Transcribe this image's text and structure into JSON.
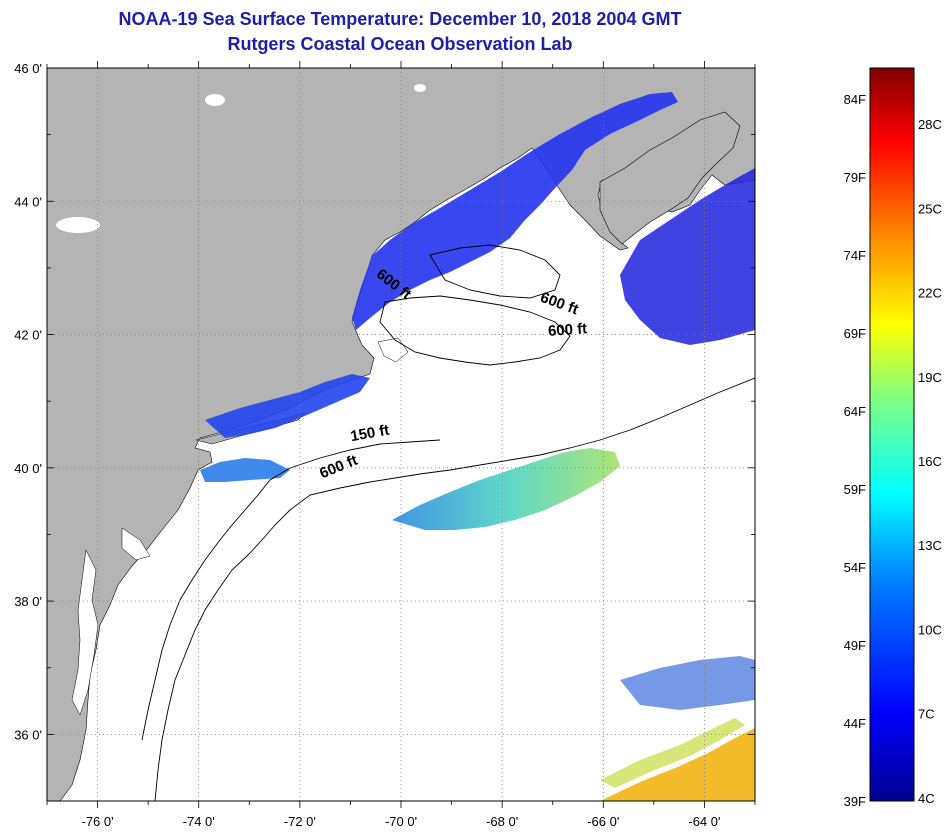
{
  "title": "NOAA-19 Sea Surface Temperature:  December 10, 2018 2004 GMT",
  "subtitle": "Rutgers Coastal Ocean Observation Lab",
  "map": {
    "lon_range": [
      -77.0,
      -63.0
    ],
    "lat_range": [
      35.0,
      46.0
    ],
    "lat_ticks": [
      "46 0'",
      "44 0'",
      "42 0'",
      "40 0'",
      "38 0'",
      "36 0'"
    ],
    "lon_ticks": [
      "-76 0'",
      "-74 0'",
      "-72 0'",
      "-70 0'",
      "-68 0'",
      "-66 0'",
      "-64 0'"
    ],
    "contour_labels": [
      {
        "text": "600 ft",
        "lon": -70.2,
        "lat": 42.7
      },
      {
        "text": "600 ft",
        "lon": -66.9,
        "lat": 42.4
      },
      {
        "text": "600 ft",
        "lon": -66.7,
        "lat": 42.0
      },
      {
        "text": "150 ft",
        "lon": -70.6,
        "lat": 40.45
      },
      {
        "text": "600 ft",
        "lon": -71.2,
        "lat": 39.95
      }
    ],
    "colors": {
      "land": "#b4b4b4",
      "water": "#ffffff",
      "grid": "#808080"
    }
  },
  "colorbar": {
    "fahrenheit_labels": [
      "84F",
      "79F",
      "74F",
      "69F",
      "64F",
      "59F",
      "54F",
      "49F",
      "44F",
      "39F"
    ],
    "celsius_labels": [
      "28C",
      "25C",
      "22C",
      "19C",
      "16C",
      "13C",
      "10C",
      "7C",
      "4C"
    ],
    "colors": [
      "#00008f",
      "#0000ff",
      "#0080ff",
      "#00ffff",
      "#80ff80",
      "#ffff00",
      "#ff8000",
      "#ff0000",
      "#800000"
    ]
  }
}
